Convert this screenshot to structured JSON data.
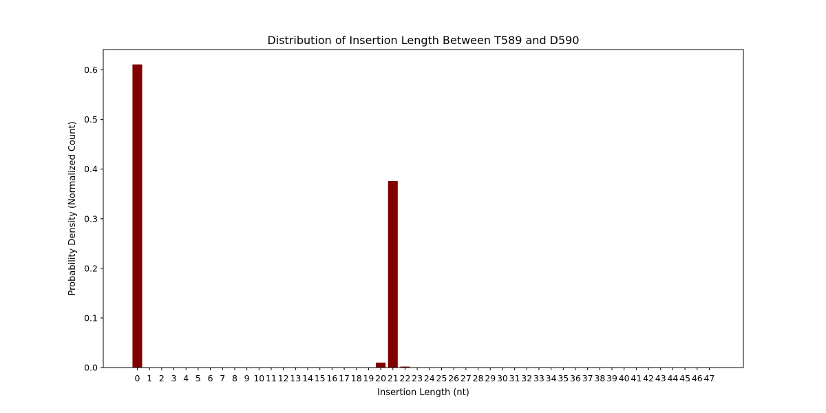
{
  "chart_data": {
    "type": "bar",
    "title": "Distribution of Insertion Length Between T589 and D590",
    "xlabel": "Insertion Length (nt)",
    "ylabel": "Probability Density (Normalized Count)",
    "categories": [
      "0",
      "1",
      "2",
      "3",
      "4",
      "5",
      "6",
      "7",
      "8",
      "9",
      "10",
      "11",
      "12",
      "13",
      "14",
      "15",
      "16",
      "17",
      "18",
      "19",
      "20",
      "21",
      "22",
      "23",
      "24",
      "25",
      "26",
      "27",
      "28",
      "29",
      "30",
      "31",
      "32",
      "33",
      "34",
      "35",
      "36",
      "37",
      "38",
      "39",
      "40",
      "41",
      "42",
      "43",
      "44",
      "45",
      "46",
      "47"
    ],
    "values": [
      0.611,
      0,
      0,
      0,
      0,
      0,
      0,
      0,
      0,
      0,
      0,
      0,
      0,
      0,
      0,
      0,
      0,
      0,
      0,
      0,
      0.01,
      0.376,
      0.002,
      0,
      0,
      0,
      0,
      0,
      0,
      0,
      0,
      0,
      0,
      0,
      0,
      0,
      0,
      0,
      0,
      0,
      0,
      0,
      0,
      0,
      0,
      0,
      0,
      0
    ],
    "ylim": [
      0,
      0.641
    ],
    "yticks": [
      0.0,
      0.1,
      0.2,
      0.3,
      0.4,
      0.5,
      0.6
    ],
    "ytick_labels": [
      "0.0",
      "0.1",
      "0.2",
      "0.3",
      "0.4",
      "0.5",
      "0.6"
    ],
    "bar_color": "#800000",
    "grid": false
  }
}
